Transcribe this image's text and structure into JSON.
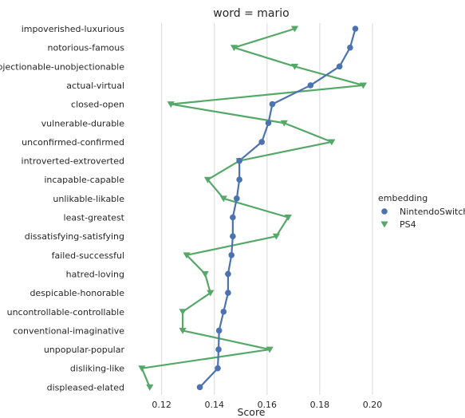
{
  "chart_data": {
    "type": "line",
    "title": "word = mario",
    "xlabel": "Score",
    "ylabel": "",
    "xlim": [
      0.108,
      0.2
    ],
    "xticks": [
      "0.12",
      "0.14",
      "0.16",
      "0.18",
      "0.20"
    ],
    "grid": "vertical",
    "categories": [
      "impoverished-luxurious",
      "notorious-famous",
      "objectionable-unobjectionable",
      "actual-virtual",
      "closed-open",
      "vulnerable-durable",
      "unconfirmed-confirmed",
      "introverted-extroverted",
      "incapable-capable",
      "unlikable-likable",
      "least-greatest",
      "dissatisfying-satisfying",
      "failed-successful",
      "hatred-loving",
      "despicable-honorable",
      "uncontrollable-controllable",
      "conventional-imaginative",
      "unpopular-popular",
      "disliking-like",
      "displeased-elated"
    ],
    "legend": {
      "title": "embedding",
      "placement": "right"
    },
    "series": [
      {
        "name": "NintendoSwitch",
        "color": "#4c72b0",
        "marker": "circle",
        "values": [
          0.1935,
          0.1915,
          0.1875,
          0.1765,
          0.162,
          0.1605,
          0.158,
          0.1495,
          0.1495,
          0.1485,
          0.147,
          0.147,
          0.1465,
          0.1452,
          0.1452,
          0.1435,
          0.1418,
          0.1416,
          0.1413,
          0.1345
        ]
      },
      {
        "name": "PS4",
        "color": "#55a868",
        "marker": "triangle-down",
        "values": [
          0.1705,
          0.1475,
          0.1705,
          0.1965,
          0.1235,
          0.1665,
          0.1845,
          0.1495,
          0.1375,
          0.1435,
          0.168,
          0.1635,
          0.1295,
          0.1365,
          0.1385,
          0.128,
          0.128,
          0.161,
          0.1125,
          0.1155
        ]
      }
    ]
  }
}
